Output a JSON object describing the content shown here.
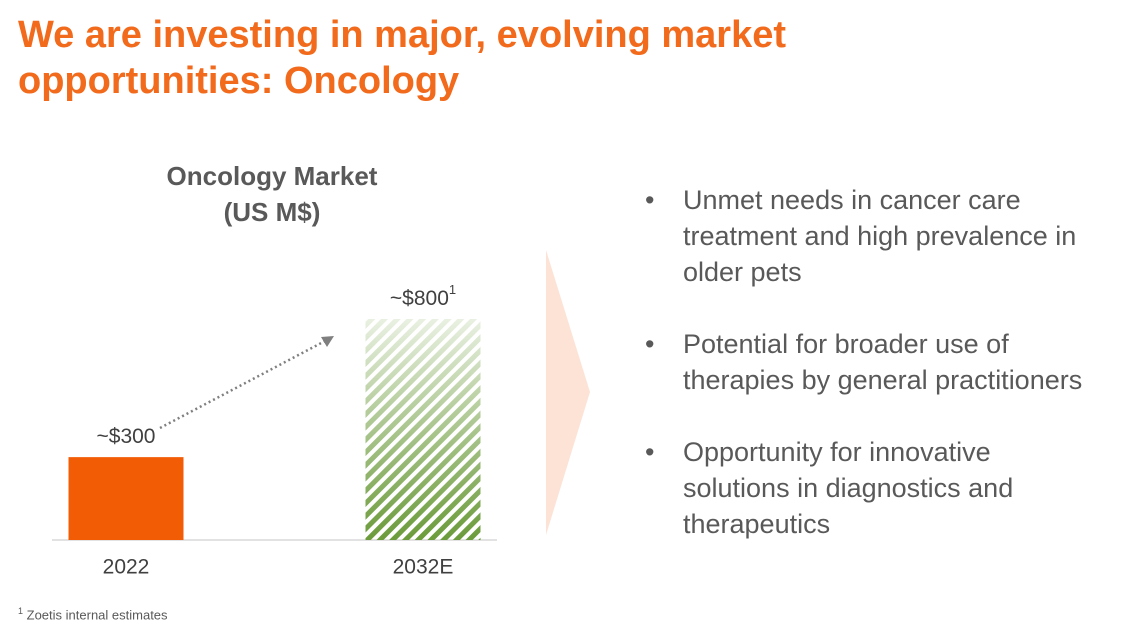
{
  "header": {
    "title": "We are investing in major, evolving market opportunities: Oncology"
  },
  "chart_data": {
    "type": "bar",
    "title": "Oncology Market",
    "subtitle": "(US M$)",
    "categories": [
      "2022",
      "2032E"
    ],
    "values": [
      300,
      800
    ],
    "value_labels": [
      "~$300",
      "~$800"
    ],
    "colors": [
      "#f25c05",
      "#6b9b3a"
    ]
  },
  "bullets": [
    "Unmet needs in cancer care treatment and high prevalence in older pets",
    "Potential for broader use of therapies by general practitioners",
    "Opportunity for innovative solutions in diagnostics and therapeutics"
  ],
  "footnote": {
    "marker": "1",
    "text": "Zoetis internal estimates"
  }
}
